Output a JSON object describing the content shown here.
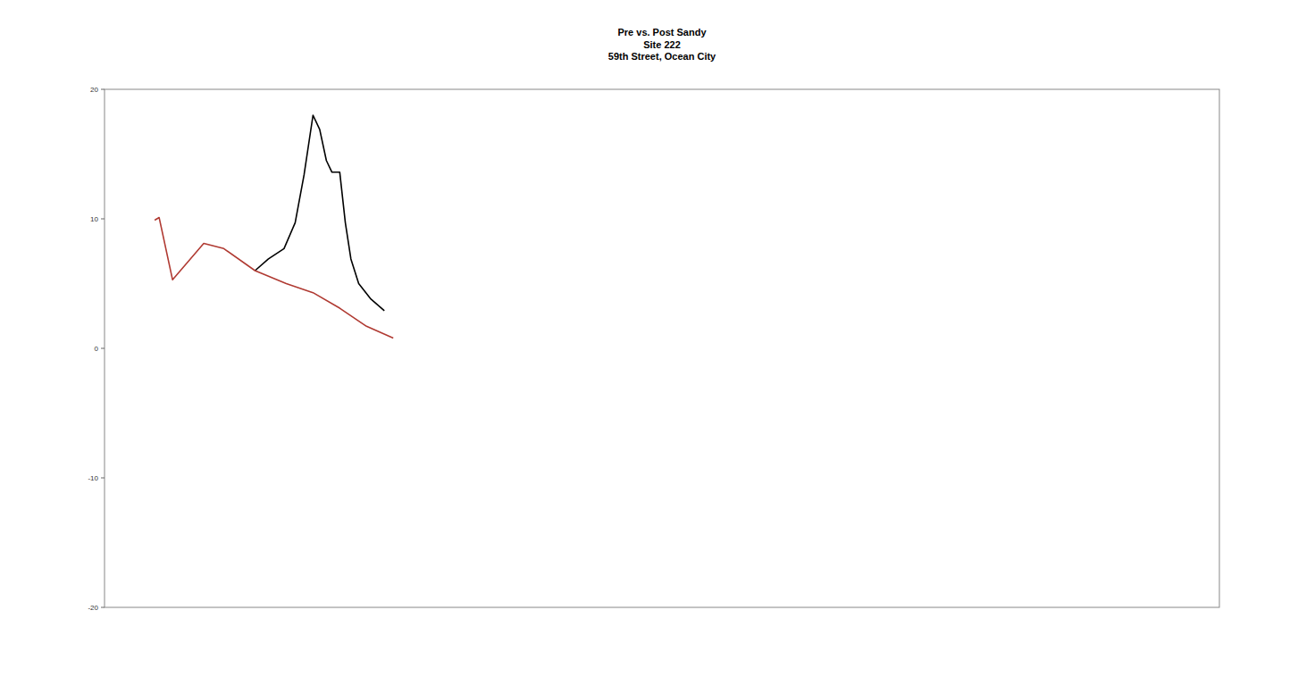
{
  "chart_data": {
    "type": "line",
    "title": "Pre vs. Post Sandy",
    "subtitle": [
      "Site 222",
      "59th Street, Ocean City"
    ],
    "xlim": [
      0,
      1000
    ],
    "ylim": [
      -20,
      20
    ],
    "yticks": [
      -20,
      -10,
      0,
      10,
      20
    ],
    "tick_labels": "y",
    "grid": false,
    "series": [
      {
        "color": "#000000",
        "line_style": "solid",
        "x": [
          135,
          147,
          161,
          171,
          179,
          187,
          193,
          199,
          204,
          211,
          216,
          221,
          228,
          239,
          251
        ],
        "values": [
          6.0,
          6.9,
          7.7,
          9.7,
          13.4,
          18.0,
          16.9,
          14.5,
          13.6,
          13.6,
          9.7,
          6.9,
          5.0,
          3.8,
          2.9
        ]
      },
      {
        "color": "#b03a32",
        "line_style": "solid",
        "x": [
          45,
          49,
          61,
          89,
          107,
          135,
          163,
          187,
          211,
          235,
          259
        ],
        "values": [
          9.9,
          10.1,
          5.3,
          8.1,
          7.7,
          6.0,
          5.0,
          4.3,
          3.1,
          1.7,
          0.8
        ]
      }
    ]
  }
}
